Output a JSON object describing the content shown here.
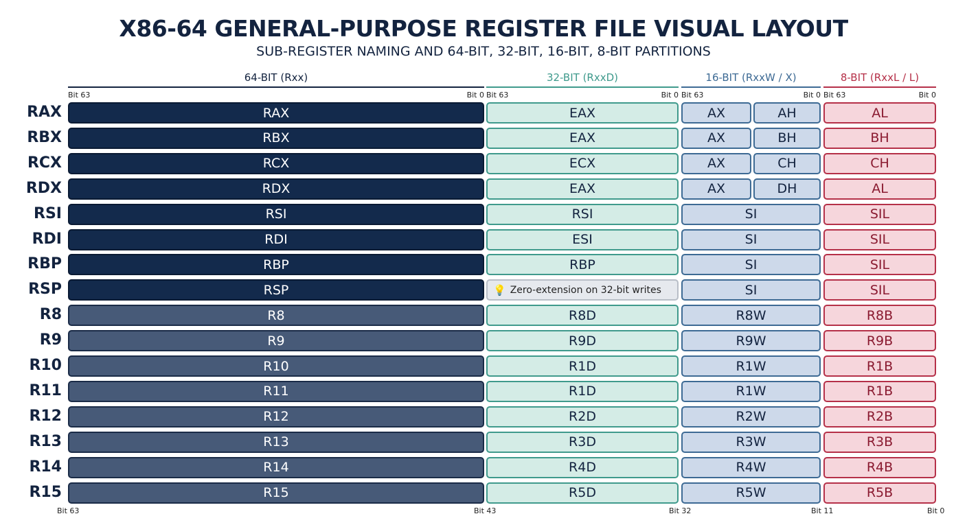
{
  "title": "X86-64 GENERAL-PURPOSE REGISTER FILE VISUAL LAYOUT",
  "subtitle": "SUB-REGISTER NAMING AND 64-BIT, 32-BIT, 16-BIT, 8-BIT PARTITIONS",
  "columns": [
    {
      "label": "64-BIT (Rxx)",
      "color": "#13233f",
      "bit_hi": "Bit 63",
      "bit_lo": "Bit 0"
    },
    {
      "label": "32-BIT (RxxD)",
      "color": "#3f9a8c",
      "bit_hi": "Bit 63",
      "bit_lo": "Bit 0"
    },
    {
      "label": "16-BIT (RxxW / X)",
      "color": "#3d6a94",
      "bit_hi": "Bit 63",
      "bit_lo": "Bit 0"
    },
    {
      "label": "8-BIT (RxxL / L)",
      "color": "#b53048",
      "bit_hi": "Bit 63",
      "bit_lo": "Bit 0"
    }
  ],
  "colors": {
    "dark64": "#132a4c",
    "light64": "#475a78",
    "fill32": "#d4ece6",
    "fill16": "#cdd9ea",
    "fill8": "#f6d6dc"
  },
  "rows": [
    {
      "name": "RAX",
      "r64": "RAX",
      "r32": "EAX",
      "r16": [
        "AX",
        "AH"
      ],
      "r8": "AL",
      "dark": true
    },
    {
      "name": "RBX",
      "r64": "RBX",
      "r32": "EAX",
      "r16": [
        "AX",
        "BH"
      ],
      "r8": "BH",
      "dark": true
    },
    {
      "name": "RCX",
      "r64": "RCX",
      "r32": "ECX",
      "r16": [
        "AX",
        "CH"
      ],
      "r8": "CH",
      "dark": true
    },
    {
      "name": "RDX",
      "r64": "RDX",
      "r32": "EAX",
      "r16": [
        "AX",
        "DH"
      ],
      "r8": "AL",
      "dark": true
    },
    {
      "name": "RSI",
      "r64": "RSI",
      "r32": "RSI",
      "r16": [
        "SI"
      ],
      "r8": "SIL",
      "dark": true
    },
    {
      "name": "RDI",
      "r64": "RDI",
      "r32": "ESI",
      "r16": [
        "SI"
      ],
      "r8": "SIL",
      "dark": true
    },
    {
      "name": "RBP",
      "r64": "RBP",
      "r32": "RBP",
      "r16": [
        "SI"
      ],
      "r8": "SIL",
      "dark": true
    },
    {
      "name": "RSP",
      "r64": "RSP",
      "r32_note": "Zero-extension on 32-bit writes",
      "note_icon": "lightbulb-icon",
      "r16": [
        "SI"
      ],
      "r8": "SIL",
      "dark": true
    },
    {
      "name": "R8",
      "r64": "R8",
      "r32": "R8D",
      "r16": [
        "R8W"
      ],
      "r8": "R8B",
      "dark": false
    },
    {
      "name": "R9",
      "r64": "R9",
      "r32": "R9D",
      "r16": [
        "R9W"
      ],
      "r8": "R9B",
      "dark": false
    },
    {
      "name": "R10",
      "r64": "R10",
      "r32": "R1D",
      "r16": [
        "R1W"
      ],
      "r8": "R1B",
      "dark": false
    },
    {
      "name": "R11",
      "r64": "R11",
      "r32": "R1D",
      "r16": [
        "R1W"
      ],
      "r8": "R1B",
      "dark": false
    },
    {
      "name": "R12",
      "r64": "R12",
      "r32": "R2D",
      "r16": [
        "R2W"
      ],
      "r8": "R2B",
      "dark": false
    },
    {
      "name": "R13",
      "r64": "R13",
      "r32": "R3D",
      "r16": [
        "R3W"
      ],
      "r8": "R3B",
      "dark": false
    },
    {
      "name": "R14",
      "r64": "R14",
      "r32": "R4D",
      "r16": [
        "R4W"
      ],
      "r8": "R4B",
      "dark": false
    },
    {
      "name": "R15",
      "r64": "R15",
      "r32": "R5D",
      "r16": [
        "R5W"
      ],
      "r8": "R5B",
      "dark": false
    }
  ],
  "bottom_bits": [
    "Bit 63",
    "Bit 43",
    "Bit 32",
    "Bit 11",
    "Bit 0"
  ]
}
